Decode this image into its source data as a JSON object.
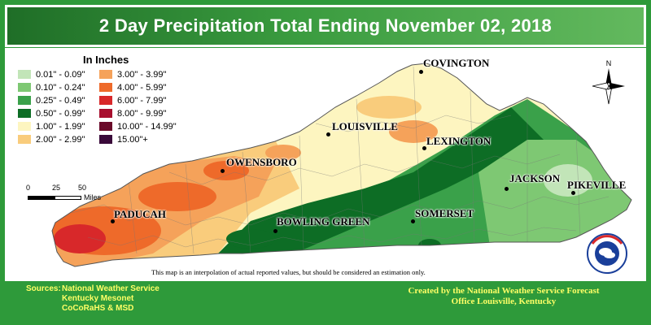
{
  "title": "2 Day Precipitation Total Ending November 02, 2018",
  "legend": {
    "title": "In Inches",
    "items": [
      {
        "label": "0.01\" - 0.09\"",
        "color": "#c2e5b8"
      },
      {
        "label": "3.00\" - 3.99\"",
        "color": "#f5a25a"
      },
      {
        "label": "0.10\" - 0.24\"",
        "color": "#7ec873"
      },
      {
        "label": "4.00\" - 5.99\"",
        "color": "#ee6a2a"
      },
      {
        "label": "0.25\" - 0.49\"",
        "color": "#3aa14a"
      },
      {
        "label": "6.00\" - 7.99\"",
        "color": "#d8282a"
      },
      {
        "label": "0.50\" - 0.99\"",
        "color": "#0d6d25"
      },
      {
        "label": "8.00\" - 9.99\"",
        "color": "#a80f2e"
      },
      {
        "label": "1.00\" - 1.99\"",
        "color": "#fdf5c0"
      },
      {
        "label": "10.00\" - 14.99\"",
        "color": "#6a0a2a"
      },
      {
        "label": "2.00\" - 2.99\"",
        "color": "#f9cc7c"
      },
      {
        "label": "15.00\"+",
        "color": "#3a0a3a"
      }
    ]
  },
  "scale": {
    "ticks": [
      "0",
      "25",
      "50"
    ],
    "unit": "Miles"
  },
  "north_label": "N",
  "cities": [
    {
      "name": "COVINGTON"
    },
    {
      "name": "LOUISVILLE"
    },
    {
      "name": "LEXINGTON"
    },
    {
      "name": "OWENSBORO"
    },
    {
      "name": "JACKSON"
    },
    {
      "name": "PIKEVILLE"
    },
    {
      "name": "PADUCAH"
    },
    {
      "name": "BOWLING GREEN"
    },
    {
      "name": "SOMERSET"
    }
  ],
  "disclaimer": "This map is an interpolation of actual reported values, but should be considered an estimation only.",
  "sources": {
    "label": "Sources:",
    "lines": [
      "National Weather Service",
      "Kentucky Mesonet",
      "CoCoRaHS & MSD"
    ]
  },
  "credit": {
    "line1": "Created by the National Weather Service Forecast",
    "line2": "Office Louisville, Kentucky"
  },
  "logo_text": "NATIONAL WEATHER SERVICE"
}
